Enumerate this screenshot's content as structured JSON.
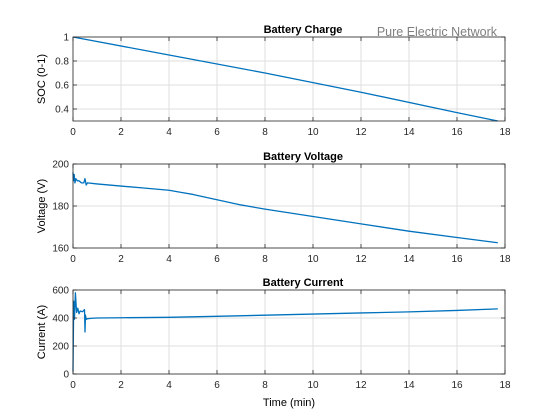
{
  "annotation": "Pure Electric Network",
  "colors": {
    "line": "#0072BD",
    "grid": "#dfdfdf",
    "axes": "#262626"
  },
  "chart_data": [
    {
      "type": "line",
      "title": "Battery Charge",
      "xlabel": "",
      "ylabel": "SOC (0-1)",
      "xlim": [
        0,
        18
      ],
      "ylim": [
        0.3,
        1.0
      ],
      "xticks": [
        0,
        2,
        4,
        6,
        8,
        10,
        12,
        14,
        16,
        18
      ],
      "yticks": [
        0.4,
        0.6,
        0.8,
        1
      ],
      "grid": true,
      "series": [
        {
          "x": [
            0,
            4,
            8,
            12,
            16,
            17.7
          ],
          "y": [
            1.0,
            0.85,
            0.7,
            0.54,
            0.37,
            0.3
          ]
        }
      ]
    },
    {
      "type": "line",
      "title": "Battery Voltage",
      "xlabel": "",
      "ylabel": "Voltage (V)",
      "xlim": [
        0,
        18
      ],
      "ylim": [
        160,
        200
      ],
      "xticks": [
        0,
        2,
        4,
        6,
        8,
        10,
        12,
        14,
        16,
        18
      ],
      "yticks": [
        160,
        180,
        200
      ],
      "grid": true,
      "series": [
        {
          "x": [
            0,
            0.02,
            0.05,
            0.08,
            0.12,
            0.18,
            0.25,
            0.35,
            0.45,
            0.5,
            0.55,
            0.6,
            1,
            2,
            3,
            4,
            4.5,
            5,
            6,
            7,
            8,
            10,
            12,
            14,
            16,
            17.7
          ],
          "y": [
            196,
            192,
            195,
            191,
            193,
            192,
            192,
            191,
            191,
            193,
            190,
            191,
            190.5,
            189.5,
            188.5,
            187.5,
            186.5,
            185.5,
            183,
            180.5,
            178.5,
            175,
            171.5,
            168,
            165,
            162.5
          ]
        }
      ]
    },
    {
      "type": "line",
      "title": "Battery Current",
      "xlabel": "Time (min)",
      "ylabel": "Current (A)",
      "xlim": [
        0,
        18
      ],
      "ylim": [
        0,
        600
      ],
      "xticks": [
        0,
        2,
        4,
        6,
        8,
        10,
        12,
        14,
        16,
        18
      ],
      "yticks": [
        0,
        200,
        400,
        600
      ],
      "grid": true,
      "series": [
        {
          "x": [
            0,
            0.03,
            0.06,
            0.1,
            0.15,
            0.2,
            0.25,
            0.3,
            0.4,
            0.48,
            0.5,
            0.52,
            0.55,
            0.6,
            0.8,
            1,
            2,
            4,
            6,
            8,
            10,
            12,
            14,
            16,
            17.7
          ],
          "y": [
            20,
            520,
            390,
            580,
            440,
            470,
            430,
            450,
            445,
            460,
            300,
            420,
            390,
            395,
            398,
            400,
            402,
            405,
            412,
            420,
            428,
            436,
            444,
            454,
            465
          ]
        }
      ]
    }
  ]
}
